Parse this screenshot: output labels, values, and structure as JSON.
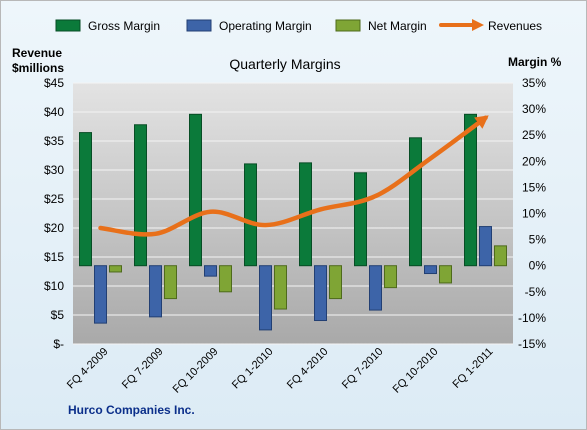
{
  "chart_data": {
    "type": "bar",
    "title": "Quarterly Margins",
    "left_axis_title": [
      "Revenue",
      "$millions"
    ],
    "right_axis_title": "Margin  %",
    "footer": "Hurco  Companies Inc.",
    "categories": [
      "FQ 4-2009",
      "FQ 7-2009",
      "FQ 10-2009",
      "FQ 1-2010",
      "FQ 4-2010",
      "FQ 7-2010",
      "FQ 10-2010",
      "FQ 1-2011"
    ],
    "left_axis": {
      "min": 0,
      "max": 45,
      "step": 5,
      "tick_labels": [
        "$-",
        "$5",
        "$10",
        "$15",
        "$20",
        "$25",
        "$30",
        "$35",
        "$40",
        "$45"
      ]
    },
    "right_axis": {
      "min": -15,
      "max": 35,
      "step": 5,
      "tick_labels": [
        "-15%",
        "-10%",
        "-5%",
        "0%",
        "5%",
        "10%",
        "15%",
        "20%",
        "25%",
        "30%",
        "35%"
      ]
    },
    "series": [
      {
        "name": "Gross Margin",
        "type": "bar",
        "axis": "right",
        "color": "#0b7a3a",
        "values": [
          25.5,
          27,
          29,
          19.5,
          19.7,
          17.8,
          24.5,
          29
        ]
      },
      {
        "name": "Operating Margin",
        "type": "bar",
        "axis": "right",
        "color": "#3d64a8",
        "values": [
          -11,
          -9.8,
          -2,
          -12.3,
          -10.5,
          -8.5,
          -1.5,
          7.5
        ]
      },
      {
        "name": "Net Margin",
        "type": "bar",
        "axis": "right",
        "color": "#7fa535",
        "values": [
          -1.2,
          -6.3,
          -5,
          -8.3,
          -6.3,
          -4.2,
          -3.3,
          3.8
        ]
      },
      {
        "name": "Revenues",
        "type": "line",
        "axis": "left",
        "color": "#e8701a",
        "values": [
          20,
          19,
          22.8,
          20.5,
          23.2,
          25.5,
          32,
          39
        ]
      }
    ],
    "grid": true,
    "legend_position": "top"
  }
}
